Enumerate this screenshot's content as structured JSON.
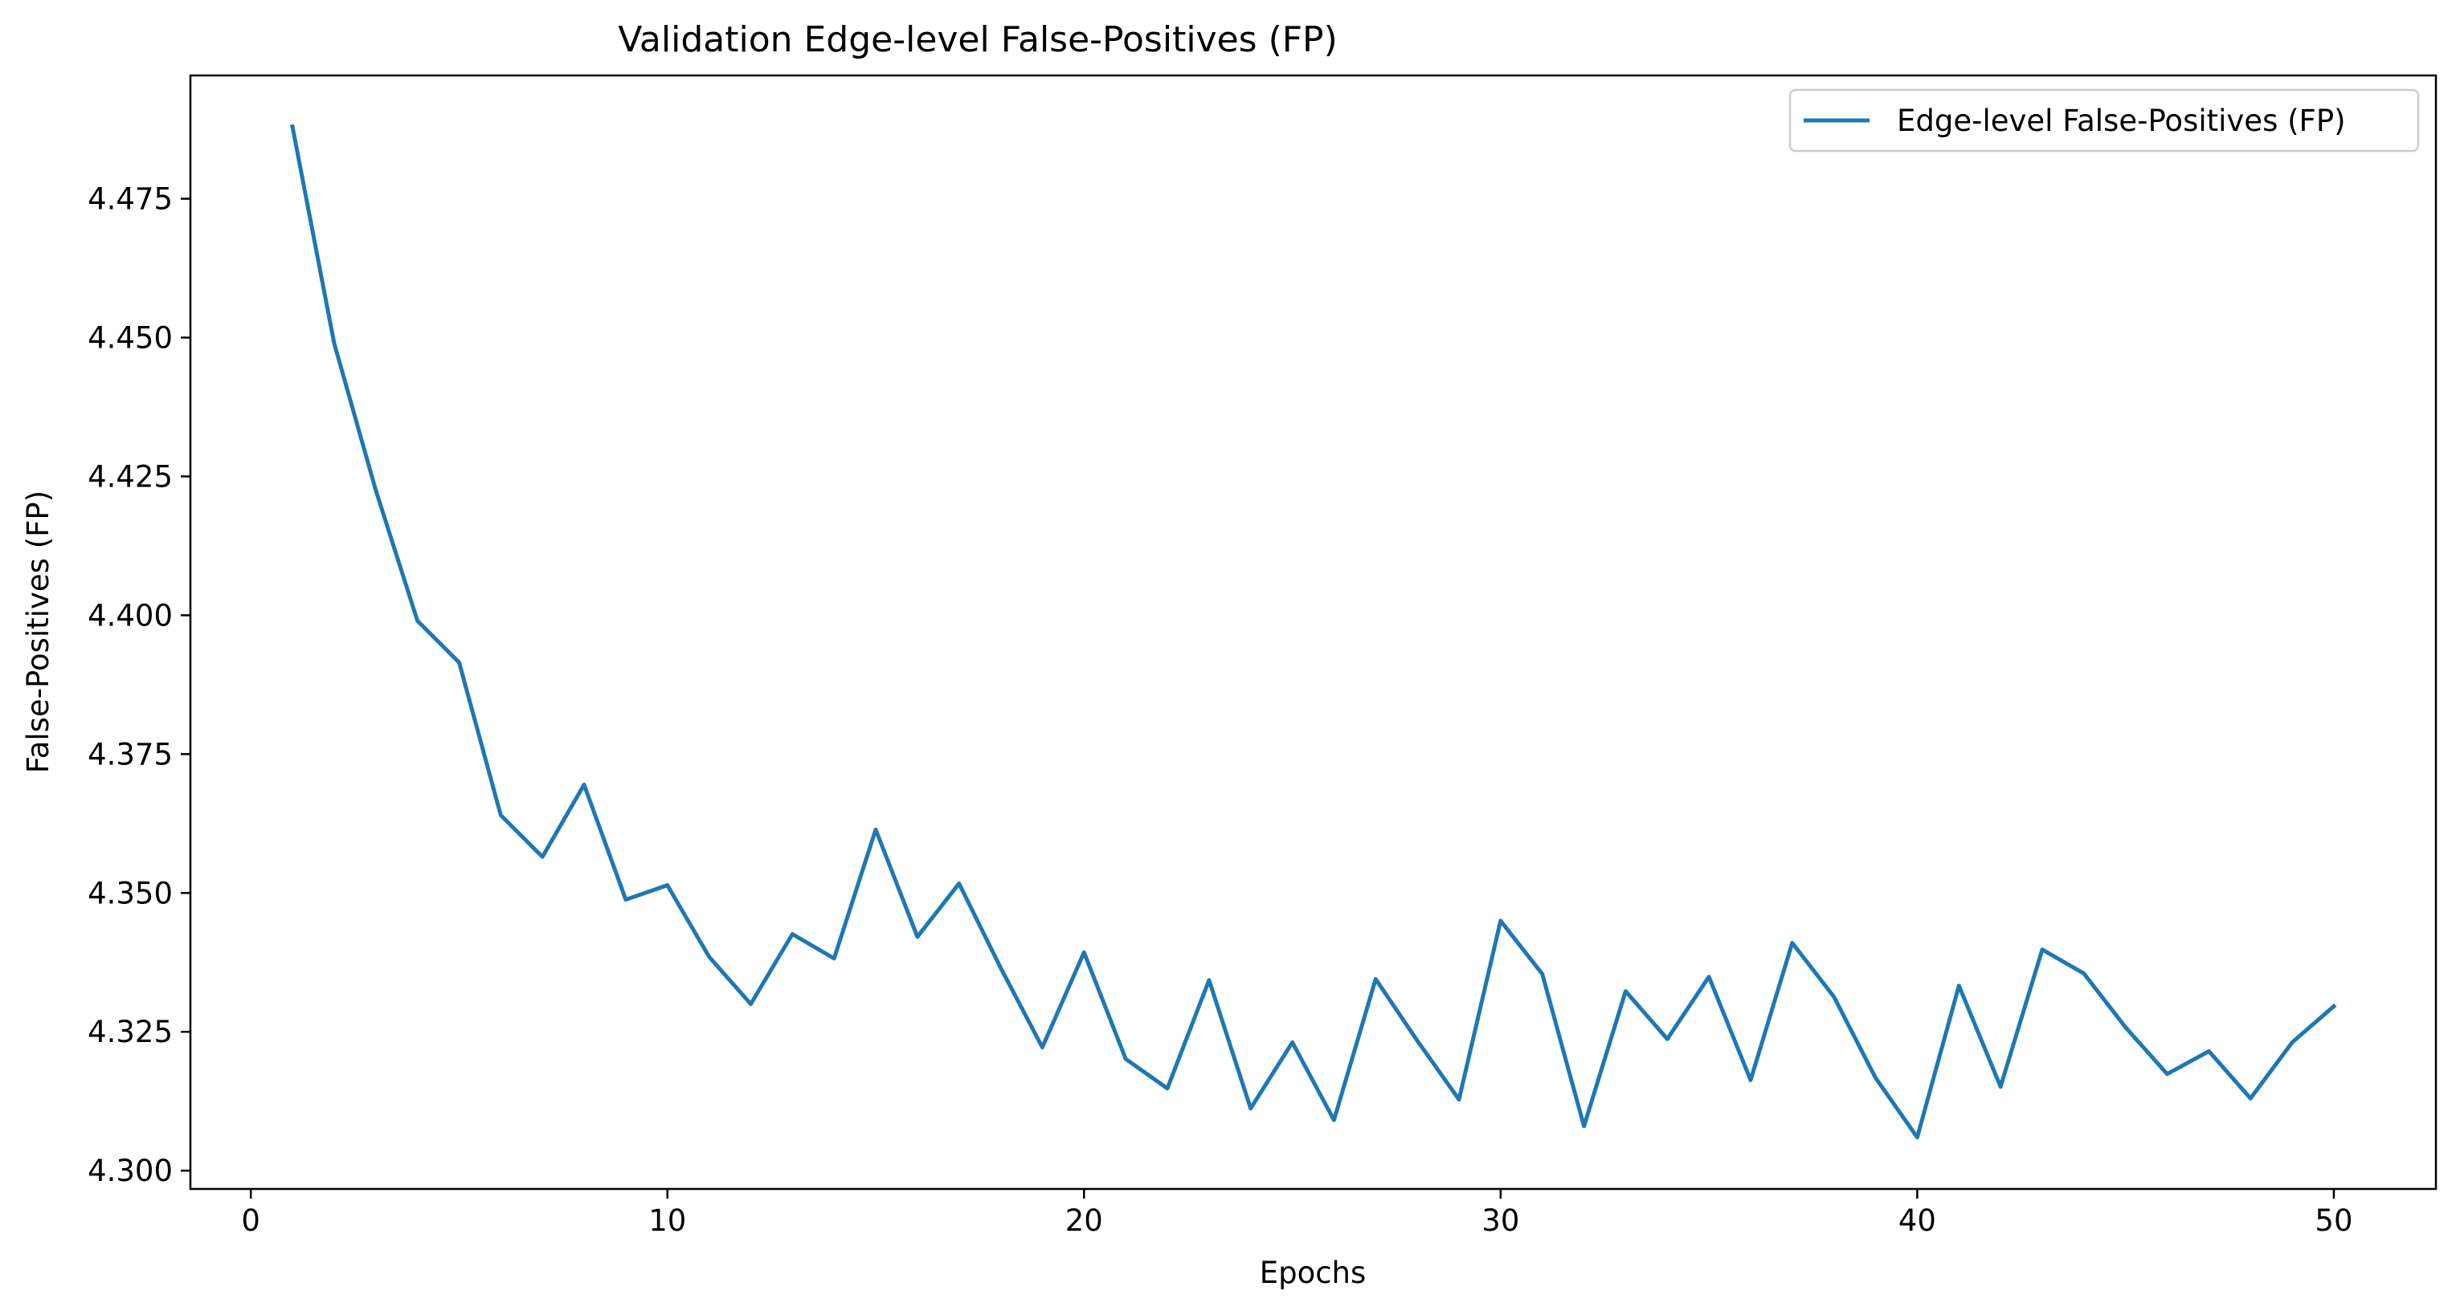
{
  "chart_data": {
    "type": "line",
    "title": "Validation Edge-level False-Positives (FP)",
    "xlabel": "Epochs",
    "ylabel": "False-Positives (FP)",
    "xlim": [
      -1.45,
      52.45
    ],
    "ylim": [
      4.2967,
      4.4972
    ],
    "xticks": [
      0,
      10,
      20,
      30,
      40,
      50
    ],
    "xtick_labels": [
      "0",
      "10",
      "20",
      "30",
      "40",
      "50"
    ],
    "yticks": [
      4.3,
      4.325,
      4.35,
      4.375,
      4.4,
      4.425,
      4.45,
      4.475
    ],
    "ytick_labels": [
      "4.300",
      "4.325",
      "4.350",
      "4.375",
      "4.400",
      "4.425",
      "4.450",
      "4.475"
    ],
    "grid": false,
    "legend_position": "top-right",
    "line_color": "#1f77b4",
    "series": [
      {
        "name": "Edge-level False-Positives (FP)",
        "x": [
          1,
          2,
          3,
          4,
          5,
          6,
          7,
          8,
          9,
          10,
          11,
          12,
          13,
          14,
          15,
          16,
          17,
          18,
          19,
          20,
          21,
          22,
          23,
          24,
          25,
          26,
          27,
          28,
          29,
          30,
          31,
          32,
          33,
          34,
          35,
          36,
          37,
          38,
          39,
          40,
          41,
          42,
          43,
          44,
          45,
          46,
          47,
          48,
          49,
          50
        ],
        "y": [
          4.488,
          4.449,
          4.4225,
          4.399,
          4.3915,
          4.364,
          4.3565,
          4.3695,
          4.3488,
          4.3514,
          4.3385,
          4.33,
          4.3426,
          4.3382,
          4.3614,
          4.3421,
          4.3517,
          4.3365,
          4.3222,
          4.3393,
          4.3201,
          4.3148,
          4.3343,
          4.3112,
          4.3231,
          4.3091,
          4.3345,
          4.3234,
          4.3128,
          4.345,
          4.3354,
          4.308,
          4.3323,
          4.3237,
          4.3349,
          4.3163,
          4.341,
          4.3313,
          4.3167,
          4.306,
          4.3333,
          4.3151,
          4.3398,
          4.3355,
          4.3258,
          4.3174,
          4.3215,
          4.313,
          4.3231,
          4.3296
        ]
      }
    ]
  }
}
